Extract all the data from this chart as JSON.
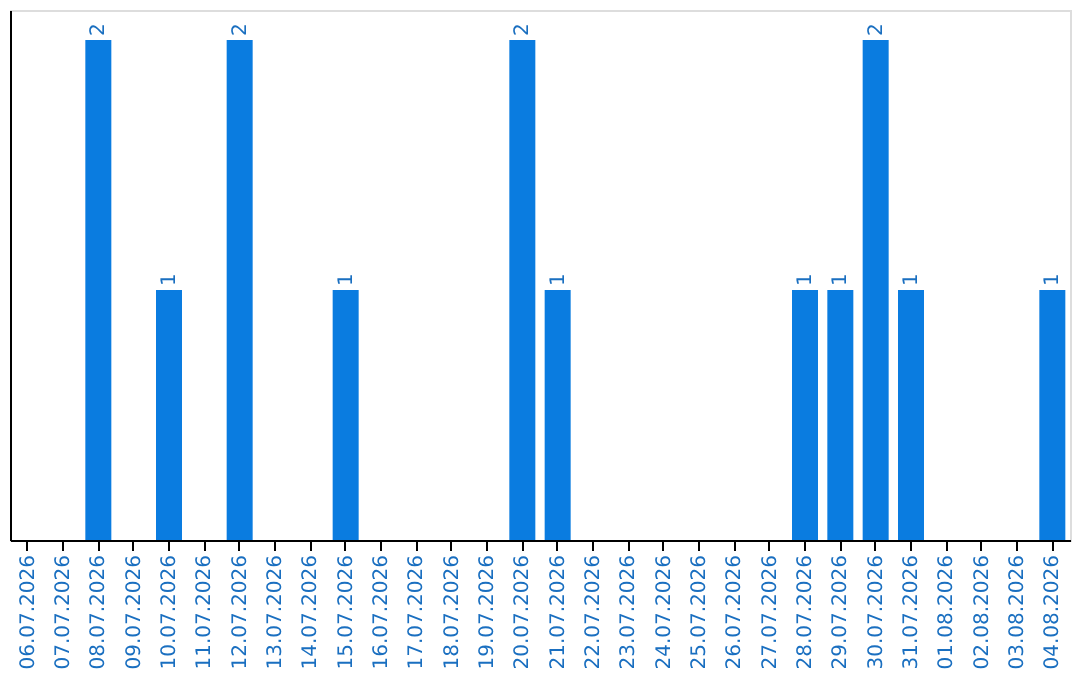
{
  "chart_data": {
    "type": "bar",
    "categories": [
      "06.07.2026",
      "07.07.2026",
      "08.07.2026",
      "09.07.2026",
      "10.07.2026",
      "11.07.2026",
      "12.07.2026",
      "13.07.2026",
      "14.07.2026",
      "15.07.2026",
      "16.07.2026",
      "17.07.2026",
      "18.07.2026",
      "19.07.2026",
      "20.07.2026",
      "21.07.2026",
      "22.07.2026",
      "23.07.2026",
      "24.07.2026",
      "25.07.2026",
      "26.07.2026",
      "27.07.2026",
      "28.07.2026",
      "29.07.2026",
      "30.07.2026",
      "31.07.2026",
      "01.08.2026",
      "02.08.2026",
      "03.08.2026",
      "04.08.2026"
    ],
    "values": [
      0,
      0,
      2,
      0,
      1,
      0,
      2,
      0,
      0,
      1,
      0,
      0,
      0,
      0,
      2,
      1,
      0,
      0,
      0,
      0,
      0,
      0,
      1,
      1,
      2,
      1,
      0,
      0,
      0,
      1
    ],
    "value_labels": [
      null,
      null,
      "2",
      null,
      "1",
      null,
      "2",
      null,
      null,
      "1",
      null,
      null,
      null,
      null,
      "2",
      "1",
      null,
      null,
      null,
      null,
      null,
      null,
      "1",
      "1",
      "2",
      "1",
      null,
      null,
      null,
      "1"
    ],
    "color": "#0a7ce0",
    "grid": false,
    "tick_labels": "x"
  }
}
